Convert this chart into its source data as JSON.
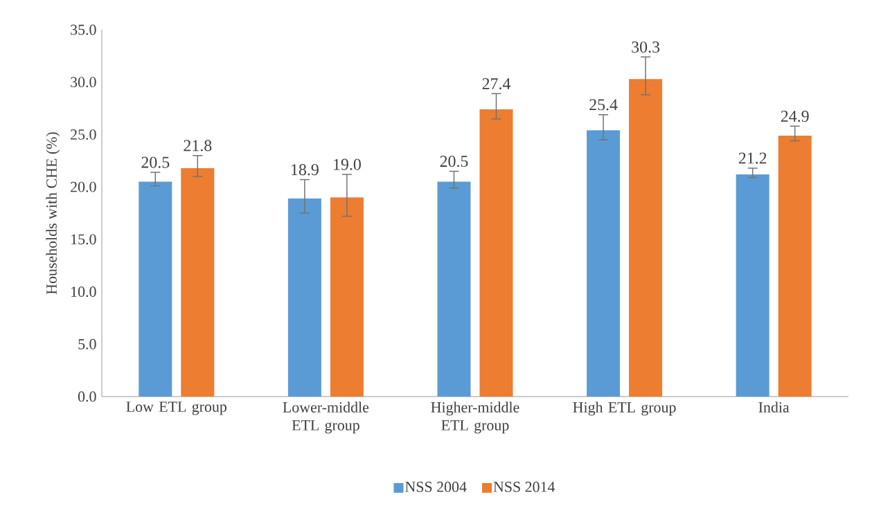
{
  "chart_data": {
    "type": "bar",
    "ylabel": "Households with CHE (%)",
    "categories": [
      "Low ETL group",
      "Lower-middle ETL group",
      "Higher-middle ETL group",
      "High ETL group",
      "India"
    ],
    "series": [
      {
        "name": "NSS 2004",
        "color": "#5b9bd5",
        "values": [
          20.5,
          18.9,
          20.5,
          25.4,
          21.2
        ],
        "value_labels": [
          "20.5",
          "18.9",
          "20.5",
          "25.4",
          "21.2"
        ],
        "errors": [
          [
            20.1,
            21.4
          ],
          [
            17.5,
            20.7
          ],
          [
            19.9,
            21.5
          ],
          [
            24.5,
            26.9
          ],
          [
            20.9,
            21.8
          ]
        ]
      },
      {
        "name": "NSS 2014",
        "color": "#ed7d31",
        "values": [
          21.8,
          19.0,
          27.4,
          30.3,
          24.9
        ],
        "value_labels": [
          "21.8",
          "19.0",
          "27.4",
          "30.3",
          "24.9"
        ],
        "errors": [
          [
            21.0,
            23.0
          ],
          [
            17.2,
            21.2
          ],
          [
            26.5,
            28.9
          ],
          [
            28.8,
            32.4
          ],
          [
            24.4,
            25.8
          ]
        ]
      }
    ],
    "ylim": [
      0,
      35
    ],
    "yticks": [
      {
        "value": 0,
        "label": "0.0"
      },
      {
        "value": 5,
        "label": "5.0"
      },
      {
        "value": 10,
        "label": "10.0"
      },
      {
        "value": 15,
        "label": "15.0"
      },
      {
        "value": 20,
        "label": "20.0"
      },
      {
        "value": 25,
        "label": "25.0"
      },
      {
        "value": 30,
        "label": "30.0"
      },
      {
        "value": 35,
        "label": "35.0"
      }
    ],
    "grid": false,
    "legend": "bottom"
  }
}
